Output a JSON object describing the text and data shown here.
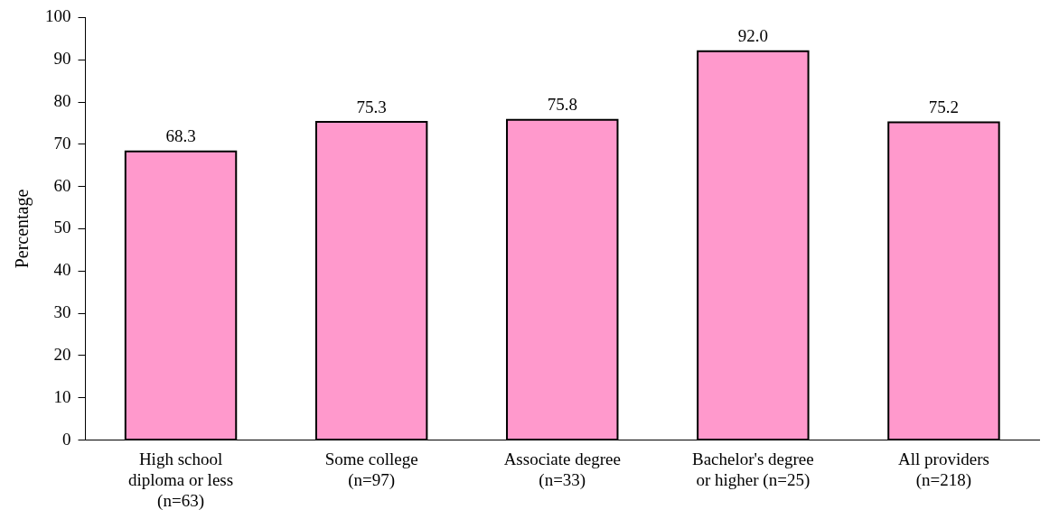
{
  "chart_data": {
    "type": "bar",
    "ylabel": "Percentage",
    "categories": [
      "High school diploma or less (n=63)",
      "Some college (n=97)",
      "Associate degree (n=33)",
      "Bachelor's degree or higher (n=25)",
      "All providers (n=218)"
    ],
    "values": [
      68.3,
      75.3,
      75.8,
      92.0,
      75.2
    ],
    "value_labels": [
      "68.3",
      "75.3",
      "75.8",
      "92.0",
      "75.2"
    ],
    "color": "#ff99cc",
    "ylim": [
      0,
      100
    ],
    "yticks": [
      0,
      10,
      20,
      30,
      40,
      50,
      60,
      70,
      80,
      90,
      100
    ],
    "grid": false,
    "legend": false
  }
}
